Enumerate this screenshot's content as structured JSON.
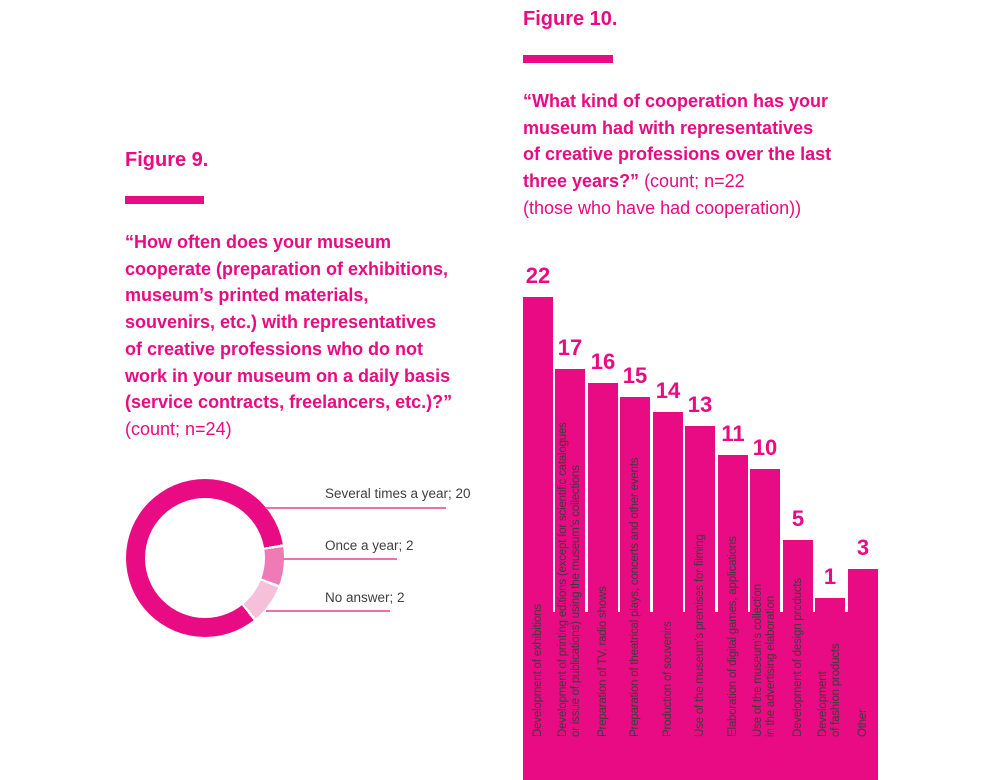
{
  "colors": {
    "magenta": "#e90b84",
    "pink_medium": "#ef7ab5",
    "pink_light": "#f5c0da",
    "leader_line": "#ec6fae",
    "legend_text": "#3f3f3f",
    "bar_label_text": "#3b3b3b",
    "background": "#ffffff"
  },
  "figure9": {
    "title": "Figure 9.",
    "question": "“How often does your museum\ncooperate (preparation of exhibitions,\nmuseum’s printed materials,\nsouvenirs, etc.) with representatives\nof creative professions who do not\nwork in your museum on a daily basis\n(service contracts, freelancers, etc.)?”",
    "count_note": "(count; n=24)"
  },
  "figure10": {
    "title": "Figure 10.",
    "question_bold": "“What kind of cooperation has your\nmuseum had with representatives\nof creative professions over the last\nthree years?”",
    "count_inline": " (count; n=22",
    "count_line2": "(those who have had cooperation))"
  },
  "chart_data": [
    {
      "type": "pie",
      "subtype": "donut",
      "title": "“How often does your museum cooperate (preparation of exhibitions, museum’s printed materials, souvenirs, etc.) with representatives of creative professions who do not work in your museum on a daily basis (service contracts, freelancers, etc.)?” (count; n=24)",
      "labels": [
        "Several times a year",
        "Once a year",
        "No answer"
      ],
      "values": [
        20,
        2,
        2
      ],
      "total": 24,
      "colors": [
        "#e90b84",
        "#ef7ab5",
        "#f5c0da"
      ],
      "legend_format": "label; value",
      "legend_position": "right",
      "legend_entries": [
        "Several times a year; 20",
        "Once a year; 2",
        "No answer; 2"
      ]
    },
    {
      "type": "bar",
      "title": "“What kind of cooperation has your museum had with representatives of creative professions over the last three years?” (count; n=22 (those who have had cooperation))",
      "orientation": "vertical",
      "categories": [
        "Development of exhibitions",
        "Development of printing editions (except for scientific catalogues or issue of publications) using the museum’s collections",
        "Preparation of TV, radio shows",
        "Preparation of theatrical plays, concerts and other events",
        "Production of souvenirs",
        "Use of the museum’s premises for filming",
        "Elaboration of digital games, applications",
        "Use of the museum’s collection in the advertising elaboration",
        "Development of design products",
        "Development of fashion products",
        "Other"
      ],
      "category_lines": [
        [
          "Development of exhibitions"
        ],
        [
          "Development of printing editions (except for scientific catalogues",
          "or issue of publications) using the museum’s collections"
        ],
        [
          "Preparation of TV, radio shows"
        ],
        [
          "Preparation of theatrical plays, concerts and other events"
        ],
        [
          "Production of souvenirs"
        ],
        [
          "Use of the museum’s premises for filming"
        ],
        [
          "Elaboration of digital games, applications"
        ],
        [
          "Use of the museum’s collection",
          "in the advertising elaboration"
        ],
        [
          "Development of design products"
        ],
        [
          "Development",
          "of fashion products"
        ],
        [
          "Other"
        ]
      ],
      "values": [
        22,
        17,
        16,
        15,
        14,
        13,
        11,
        10,
        5,
        1,
        3
      ],
      "ylim": [
        0,
        22
      ],
      "value_labels_shown": true,
      "grid": false,
      "bar_color": "#e90b84"
    }
  ]
}
